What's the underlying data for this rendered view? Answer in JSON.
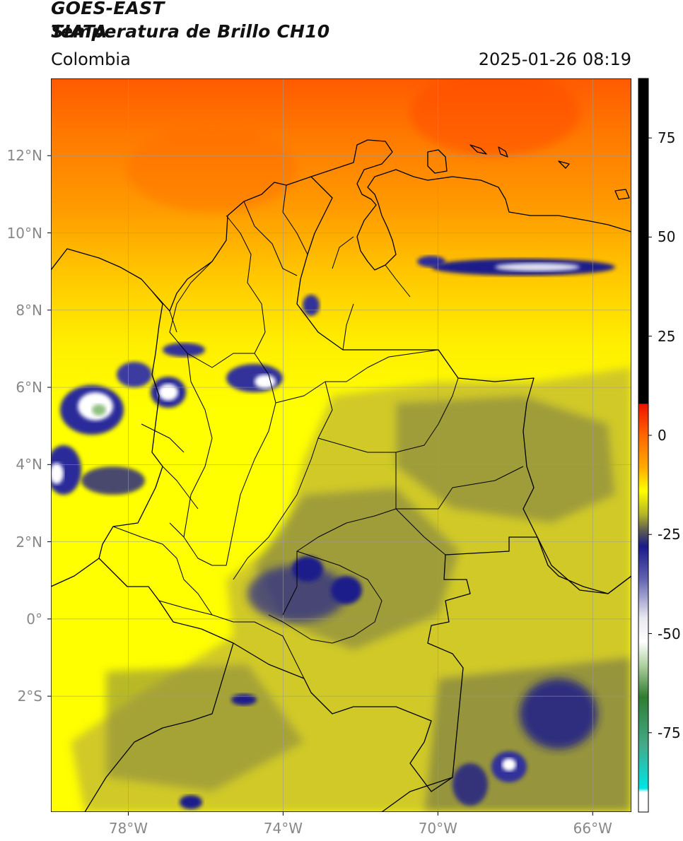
{
  "header": {
    "satellite": "GOES-EAST",
    "product": "Temperatura de Brillo CH10",
    "region": "Colombia",
    "agency": "SIATA",
    "datetime": "2025-01-26 08:19"
  },
  "map": {
    "lat_ticks": [
      {
        "value": 12,
        "label": "12°N"
      },
      {
        "value": 10,
        "label": "10°N"
      },
      {
        "value": 8,
        "label": "8°N"
      },
      {
        "value": 6,
        "label": "6°N"
      },
      {
        "value": 4,
        "label": "4°N"
      },
      {
        "value": 2,
        "label": "2°N"
      },
      {
        "value": 0,
        "label": "0°"
      },
      {
        "value": -2,
        "label": "2°S"
      }
    ],
    "lon_ticks": [
      {
        "value": -78,
        "label": "78°W"
      },
      {
        "value": -74,
        "label": "74°W"
      },
      {
        "value": -70,
        "label": "70°W"
      },
      {
        "value": -66,
        "label": "66°W"
      }
    ],
    "lat_range": [
      -5.0,
      14.0
    ],
    "lon_range": [
      -80.0,
      -65.0
    ],
    "gridlines": true
  },
  "colorbar": {
    "range": [
      -95,
      90
    ],
    "ticks": [
      {
        "value": 75,
        "label": "75"
      },
      {
        "value": 50,
        "label": "50"
      },
      {
        "value": 25,
        "label": "25"
      },
      {
        "value": 0,
        "label": "0"
      },
      {
        "value": -25,
        "label": "-25"
      },
      {
        "value": -50,
        "label": "-50"
      },
      {
        "value": -75,
        "label": "-75"
      }
    ],
    "stops": [
      {
        "value": 90,
        "color": "#000000"
      },
      {
        "value": 8,
        "color": "#000000"
      },
      {
        "value": 7.9,
        "color": "#ee1100"
      },
      {
        "value": 0,
        "color": "#ff6600"
      },
      {
        "value": -8,
        "color": "#ffaa00"
      },
      {
        "value": -14,
        "color": "#ffff00"
      },
      {
        "value": -20,
        "color": "#b3b328"
      },
      {
        "value": -24,
        "color": "#5c5c52"
      },
      {
        "value": -28,
        "color": "#1a1a8a"
      },
      {
        "value": -36,
        "color": "#6060b0"
      },
      {
        "value": -46,
        "color": "#e8e8f0"
      },
      {
        "value": -52,
        "color": "#ffffff"
      },
      {
        "value": -58,
        "color": "#b0d0a0"
      },
      {
        "value": -66,
        "color": "#2e7d32"
      },
      {
        "value": -78,
        "color": "#44aa88"
      },
      {
        "value": -89,
        "color": "#00e5e5"
      },
      {
        "value": -90,
        "color": "#ffffff"
      },
      {
        "value": -95,
        "color": "#ffffff"
      }
    ]
  }
}
